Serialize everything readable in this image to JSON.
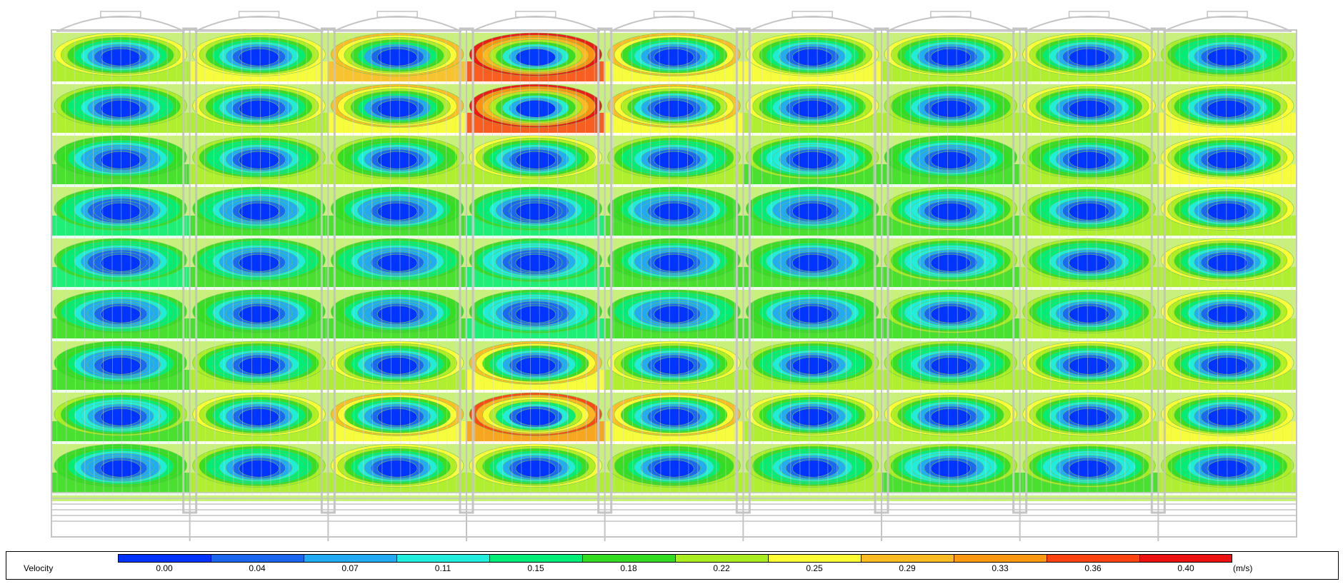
{
  "legend": {
    "title": "Velocity",
    "unit": "(m/s)",
    "ticks": [
      "0.00",
      "0.04",
      "0.07",
      "0.11",
      "0.15",
      "0.18",
      "0.22",
      "0.25",
      "0.29",
      "0.33",
      "0.36",
      "0.40"
    ],
    "colors": [
      "#0033ff",
      "#1a66ee",
      "#22aaf2",
      "#22eedd",
      "#00ee77",
      "#33dd22",
      "#aaee22",
      "#ffff33",
      "#ffbb22",
      "#ff9911",
      "#ff4411",
      "#ee1111"
    ]
  },
  "figure": {
    "columns": 9,
    "rows": 9,
    "structure_color": "#c4c4c4",
    "cell_peak_level": [
      [
        0.25,
        0.26,
        0.3,
        0.38,
        0.27,
        0.26,
        0.25,
        0.24,
        0.22
      ],
      [
        0.22,
        0.25,
        0.29,
        0.37,
        0.28,
        0.24,
        0.23,
        0.24,
        0.26
      ],
      [
        0.2,
        0.22,
        0.23,
        0.25,
        0.22,
        0.21,
        0.2,
        0.23,
        0.26
      ],
      [
        0.18,
        0.19,
        0.2,
        0.18,
        0.2,
        0.19,
        0.21,
        0.22,
        0.24
      ],
      [
        0.18,
        0.19,
        0.19,
        0.17,
        0.2,
        0.2,
        0.21,
        0.22,
        0.24
      ],
      [
        0.19,
        0.2,
        0.2,
        0.17,
        0.19,
        0.2,
        0.21,
        0.22,
        0.24
      ],
      [
        0.2,
        0.22,
        0.24,
        0.27,
        0.25,
        0.22,
        0.22,
        0.25,
        0.24
      ],
      [
        0.21,
        0.24,
        0.27,
        0.34,
        0.27,
        0.25,
        0.24,
        0.25,
        0.26
      ],
      [
        0.2,
        0.22,
        0.24,
        0.25,
        0.23,
        0.22,
        0.21,
        0.21,
        0.22
      ]
    ]
  }
}
